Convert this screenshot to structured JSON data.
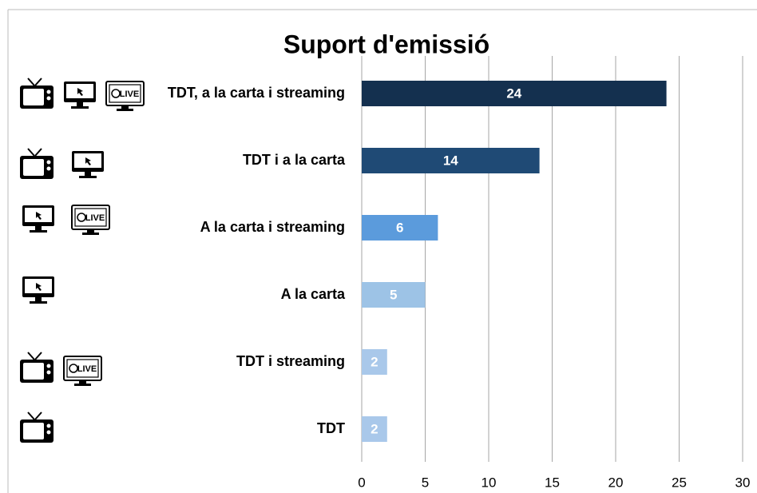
{
  "chart_data": {
    "type": "barh",
    "title": "Suport d'emissió",
    "categories": [
      "TDT, a la carta i streaming",
      "TDT i a la carta",
      "A la carta i streaming",
      "A la carta",
      "TDT i streaming",
      "TDT"
    ],
    "values": [
      24,
      14,
      6,
      5,
      2,
      2
    ],
    "colors": [
      "#14304f",
      "#1f4a75",
      "#5b9bdc",
      "#9dc3e6",
      "#a9c8ea",
      "#a9c8ea"
    ],
    "xlim": [
      0,
      30
    ],
    "xticks": [
      0,
      5,
      10,
      15,
      20,
      25,
      30
    ],
    "grid": true
  },
  "icon_label": "LIVE"
}
